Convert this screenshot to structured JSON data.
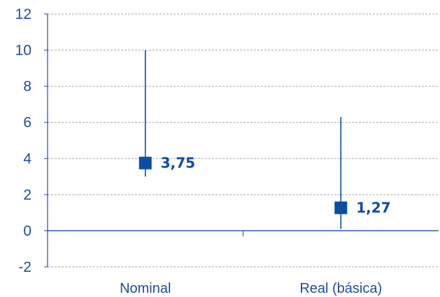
{
  "chart_data": {
    "type": "scatter",
    "title": "",
    "xlabel": "",
    "ylabel": "",
    "categories": [
      "Nominal",
      "Real (básica)"
    ],
    "ylim": [
      -2,
      12
    ],
    "yticks": [
      -2,
      0,
      2,
      4,
      6,
      8,
      10,
      12
    ],
    "ytick_labels": [
      "-2",
      "0",
      "2",
      "4",
      "6",
      "8",
      "10",
      "12"
    ],
    "grid": true,
    "legend": "none",
    "series": [
      {
        "values": [
          3.75,
          1.27
        ],
        "value_labels": [
          "3,75",
          "1,27"
        ],
        "low": [
          3.0,
          0.1
        ],
        "high": [
          10.0,
          6.3
        ]
      }
    ],
    "colors": {
      "marker": "#0b4da2",
      "axis_text": "#1f4e9a",
      "grid": "#a6a6a6",
      "axis_line": "#1f4e9a"
    }
  }
}
